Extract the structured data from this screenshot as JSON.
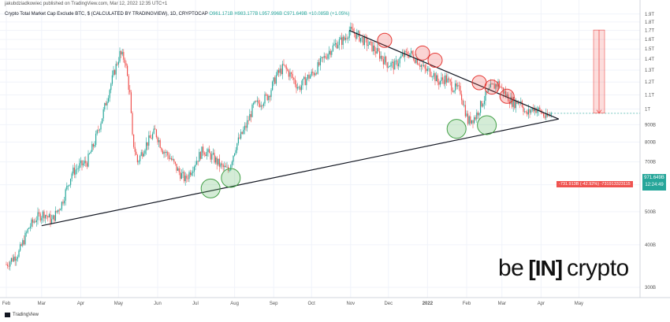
{
  "header": {
    "published_by": "jakubdziadkowiec published on TradingView.com, Mar 12, 2022 12:35 UTC+1",
    "symbol_title": "Crypto Total Market Cap Exclude BTC, $ (CALCULATED BY TRADINGVIEW), 1D, CRYPTOCAP",
    "open_label": "O961.171B",
    "high_label": "H983.177B",
    "low_label": "L957.996B",
    "close_label": "C971.649B",
    "change_label": "+10.085B (+1.05%)"
  },
  "price_tag": {
    "value": "971.649B",
    "countdown": "12:24:49"
  },
  "measure_label": "-731.913B (-42.92%) -731913323115",
  "footer": {
    "brand": "TradingView"
  },
  "watermark": {
    "left": "be",
    "middle": "[IN]",
    "right": "crypto"
  },
  "chart_data": {
    "type": "candlestick",
    "title": "Crypto Total Market Cap Exclude BTC, $ (CALCULATED BY TRADINGVIEW), 1D, CRYPTOCAP",
    "xlabel": "",
    "ylabel": "",
    "y_scale": "log",
    "ylim": [
      280,
      1980
    ],
    "y_ticks": [
      "1.9T",
      "1.8T",
      "1.7T",
      "1.6T",
      "1.5T",
      "1.4T",
      "1.3T",
      "1.2T",
      "1.1T",
      "1T",
      "900B",
      "800B",
      "700B",
      "600B",
      "500B",
      "400B",
      "300B"
    ],
    "x_ticks": [
      "Feb",
      "Mar",
      "Apr",
      "May",
      "Jun",
      "Jul",
      "Aug",
      "Sep",
      "Oct",
      "Nov",
      "Dec",
      "2022",
      "Feb",
      "Mar",
      "Apr",
      "May"
    ],
    "x_tick_days": [
      0,
      28,
      59,
      89,
      120,
      150,
      181,
      212,
      242,
      273,
      303,
      334,
      365,
      393,
      424,
      454
    ],
    "last_price": 971.649,
    "series": [
      {
        "name": "price_path",
        "points": [
          [
            0,
            350
          ],
          [
            10,
            380
          ],
          [
            18,
            450
          ],
          [
            24,
            480
          ],
          [
            30,
            495
          ],
          [
            36,
            470
          ],
          [
            44,
            530
          ],
          [
            52,
            650
          ],
          [
            58,
            680
          ],
          [
            64,
            700
          ],
          [
            70,
            800
          ],
          [
            76,
            950
          ],
          [
            82,
            1150
          ],
          [
            86,
            1300
          ],
          [
            90,
            1450
          ],
          [
            94,
            1400
          ],
          [
            98,
            1100
          ],
          [
            100,
            820
          ],
          [
            104,
            700
          ],
          [
            110,
            780
          ],
          [
            118,
            860
          ],
          [
            124,
            760
          ],
          [
            130,
            720
          ],
          [
            136,
            660
          ],
          [
            142,
            620
          ],
          [
            150,
            700
          ],
          [
            156,
            760
          ],
          [
            164,
            720
          ],
          [
            170,
            680
          ],
          [
            176,
            660
          ],
          [
            182,
            780
          ],
          [
            190,
            890
          ],
          [
            196,
            1020
          ],
          [
            202,
            1050
          ],
          [
            208,
            1100
          ],
          [
            214,
            1250
          ],
          [
            220,
            1330
          ],
          [
            226,
            1250
          ],
          [
            232,
            1150
          ],
          [
            238,
            1230
          ],
          [
            244,
            1280
          ],
          [
            250,
            1380
          ],
          [
            256,
            1480
          ],
          [
            262,
            1560
          ],
          [
            268,
            1600
          ],
          [
            272,
            1700
          ],
          [
            278,
            1650
          ],
          [
            284,
            1580
          ],
          [
            290,
            1520
          ],
          [
            296,
            1440
          ],
          [
            302,
            1360
          ],
          [
            308,
            1340
          ],
          [
            314,
            1430
          ],
          [
            320,
            1460
          ],
          [
            326,
            1390
          ],
          [
            332,
            1300
          ],
          [
            338,
            1280
          ],
          [
            342,
            1200
          ],
          [
            348,
            1230
          ],
          [
            354,
            1160
          ],
          [
            360,
            1130
          ],
          [
            366,
            920
          ],
          [
            372,
            950
          ],
          [
            378,
            1060
          ],
          [
            384,
            1150
          ],
          [
            390,
            1190
          ],
          [
            396,
            1100
          ],
          [
            402,
            1040
          ],
          [
            408,
            1060
          ],
          [
            412,
            960
          ],
          [
            418,
            1010
          ],
          [
            424,
            980
          ],
          [
            428,
            940
          ],
          [
            432,
            972
          ]
        ]
      }
    ],
    "annotations": {
      "resistance_line": {
        "from": [
          272,
          1700
        ],
        "to": [
          438,
          935
        ]
      },
      "support_line": {
        "from": [
          28,
          455
        ],
        "to": [
          438,
          935
        ]
      },
      "resistance_touches": [
        [
          300,
          1590
        ],
        [
          330,
          1460
        ],
        [
          340,
          1390
        ],
        [
          375,
          1195
        ],
        [
          385,
          1160
        ],
        [
          397,
          1090
        ]
      ],
      "support_touches": [
        [
          162,
          585
        ],
        [
          178,
          628
        ],
        [
          357,
          875
        ],
        [
          381,
          897
        ]
      ],
      "measured_move": {
        "day": 470,
        "top": 1705,
        "bottom": 973,
        "change": "-731.913B (-42.92%)"
      }
    }
  }
}
